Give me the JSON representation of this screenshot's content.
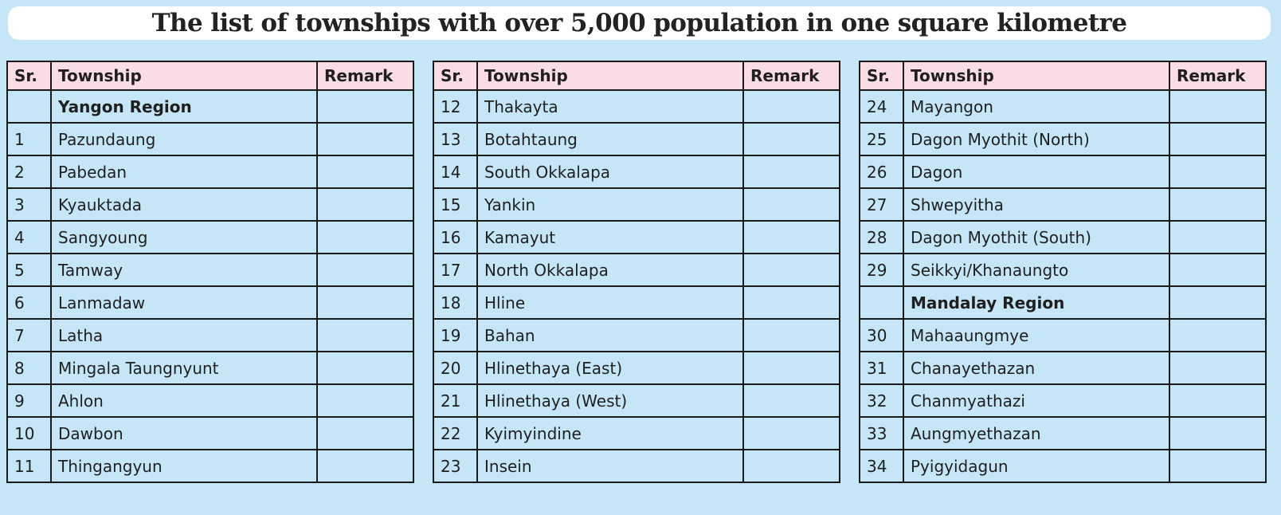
{
  "title": "The list of townships with over 5,000 population in one square kilometre",
  "headers": {
    "sr": "Sr.",
    "township": "Township",
    "remark": "Remark"
  },
  "tables": [
    {
      "rows": [
        {
          "sr": "",
          "township": "Yangon Region",
          "remark": "",
          "is_region": true
        },
        {
          "sr": "1",
          "township": "Pazundaung",
          "remark": ""
        },
        {
          "sr": "2",
          "township": "Pabedan",
          "remark": ""
        },
        {
          "sr": "3",
          "township": "Kyauktada",
          "remark": ""
        },
        {
          "sr": "4",
          "township": "Sangyoung",
          "remark": ""
        },
        {
          "sr": "5",
          "township": "Tamway",
          "remark": ""
        },
        {
          "sr": "6",
          "township": "Lanmadaw",
          "remark": ""
        },
        {
          "sr": "7",
          "township": "Latha",
          "remark": ""
        },
        {
          "sr": "8",
          "township": "Mingala Taungnyunt",
          "remark": ""
        },
        {
          "sr": "9",
          "township": "Ahlon",
          "remark": ""
        },
        {
          "sr": "10",
          "township": "Dawbon",
          "remark": ""
        },
        {
          "sr": "11",
          "township": "Thingangyun",
          "remark": ""
        }
      ]
    },
    {
      "rows": [
        {
          "sr": "12",
          "township": "Thakayta",
          "remark": ""
        },
        {
          "sr": "13",
          "township": "Botahtaung",
          "remark": ""
        },
        {
          "sr": "14",
          "township": "South Okkalapa",
          "remark": ""
        },
        {
          "sr": "15",
          "township": "Yankin",
          "remark": ""
        },
        {
          "sr": "16",
          "township": "Kamayut",
          "remark": ""
        },
        {
          "sr": "17",
          "township": "North Okkalapa",
          "remark": ""
        },
        {
          "sr": "18",
          "township": "Hline",
          "remark": ""
        },
        {
          "sr": "19",
          "township": "Bahan",
          "remark": ""
        },
        {
          "sr": "20",
          "township": "Hlinethaya (East)",
          "remark": ""
        },
        {
          "sr": "21",
          "township": "Hlinethaya (West)",
          "remark": ""
        },
        {
          "sr": "22",
          "township": "Kyimyindine",
          "remark": ""
        },
        {
          "sr": "23",
          "township": "Insein",
          "remark": ""
        }
      ]
    },
    {
      "rows": [
        {
          "sr": "24",
          "township": "Mayangon",
          "remark": ""
        },
        {
          "sr": "25",
          "township": "Dagon Myothit (North)",
          "remark": ""
        },
        {
          "sr": "26",
          "township": "Dagon",
          "remark": ""
        },
        {
          "sr": "27",
          "township": "Shwepyitha",
          "remark": ""
        },
        {
          "sr": "28",
          "township": "Dagon Myothit (South)",
          "remark": ""
        },
        {
          "sr": "29",
          "township": "Seikkyi/Khanaungto",
          "remark": ""
        },
        {
          "sr": "",
          "township": "Mandalay Region",
          "remark": "",
          "is_region": true
        },
        {
          "sr": "30",
          "township": "Mahaaungmye",
          "remark": ""
        },
        {
          "sr": "31",
          "township": "Chanayethazan",
          "remark": ""
        },
        {
          "sr": "32",
          "township": "Chanmyathazi",
          "remark": ""
        },
        {
          "sr": "33",
          "township": "Aungmyethazan",
          "remark": ""
        },
        {
          "sr": "34",
          "township": "Pyigyidagun",
          "remark": ""
        }
      ]
    }
  ],
  "colors": {
    "page_background": "#c5e6f6",
    "header_background": "#f9dce4",
    "title_background": "#ffffff",
    "border": "#1a1a1a"
  }
}
